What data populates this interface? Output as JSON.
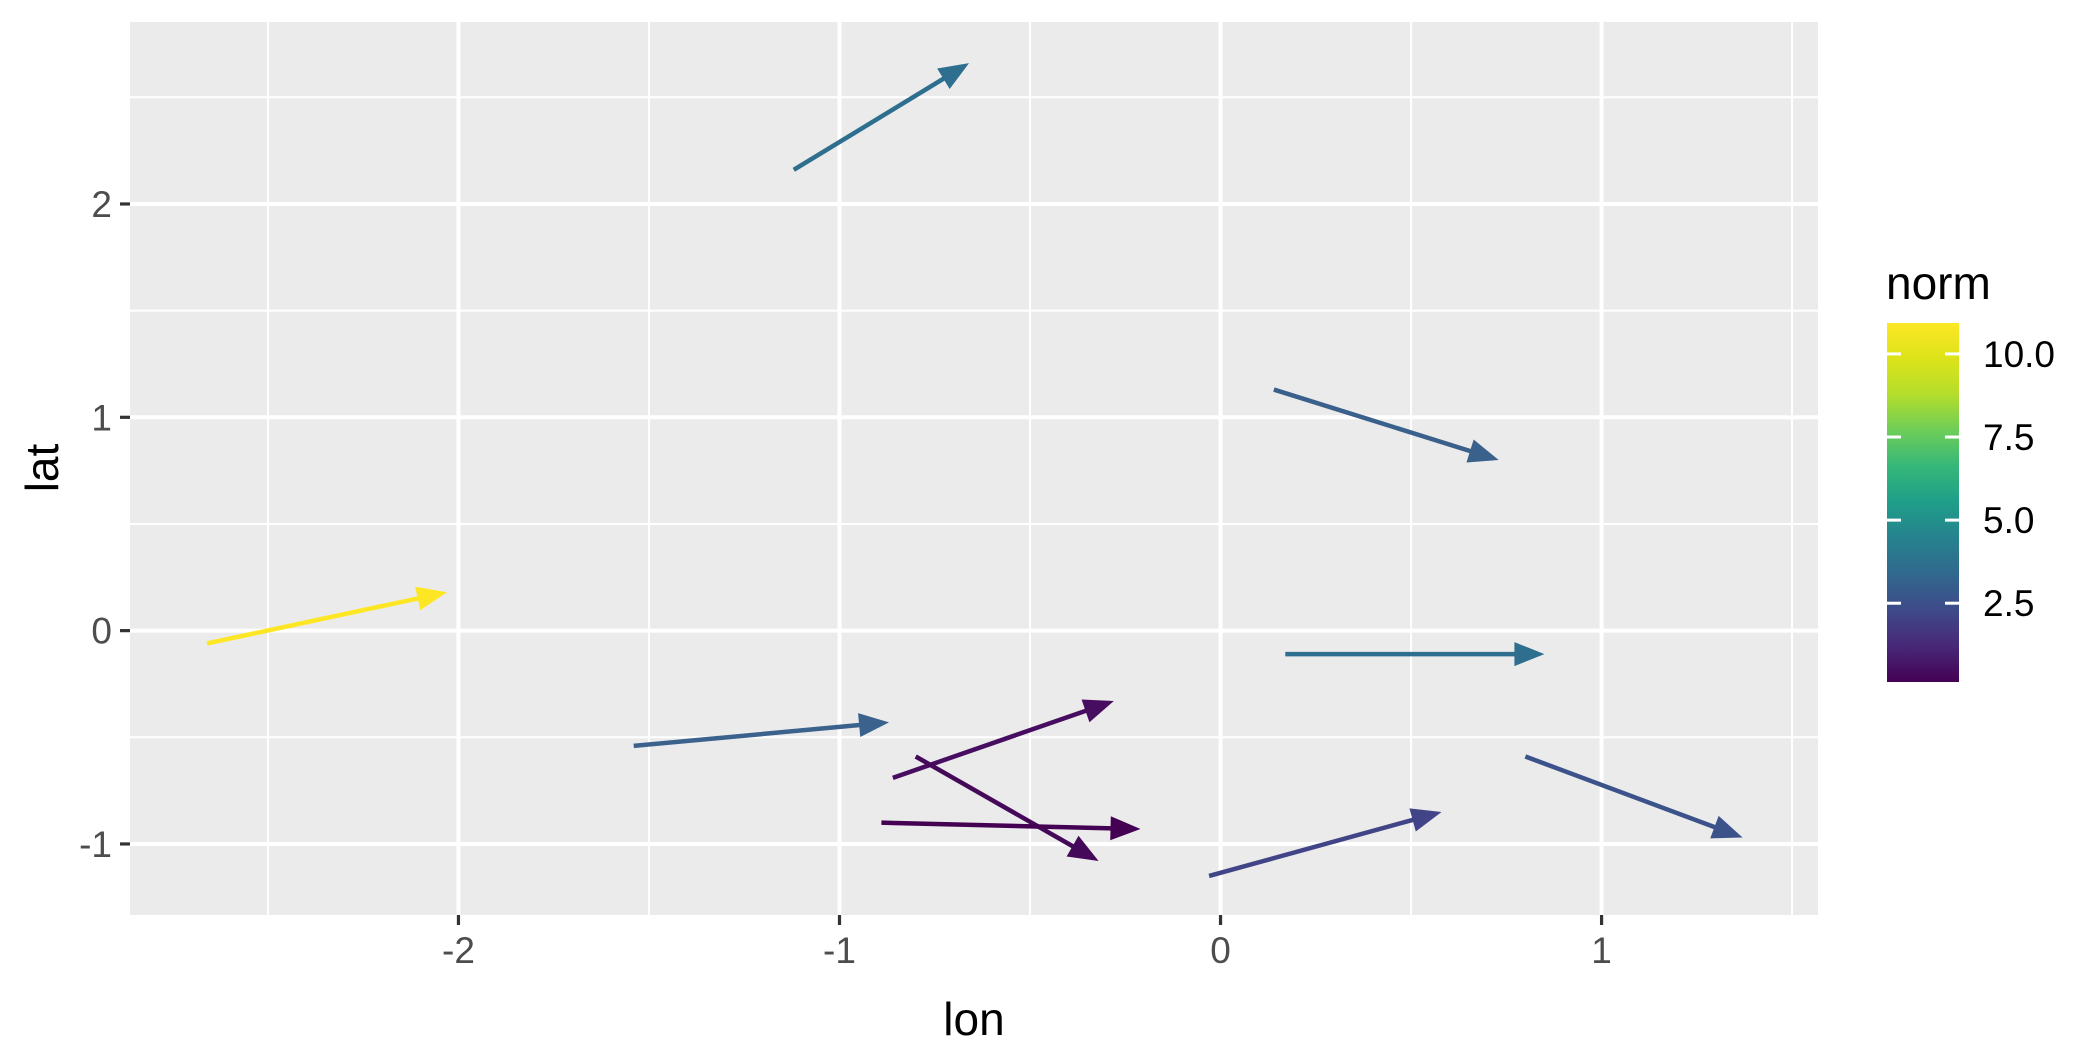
{
  "figure": {
    "background": "#FFFFFF",
    "panel_background": "#EBEBEB",
    "grid_color": "#FFFFFF",
    "tick_label_color": "#4D4D4D",
    "tick_mark_color": "#333333"
  },
  "chart_data": {
    "type": "scatter",
    "subtype": "quiver-vector-field",
    "title": "",
    "xlabel": "lon",
    "ylabel": "lat",
    "xlim": [
      -2.862,
      1.568
    ],
    "ylim": [
      -1.333,
      2.853
    ],
    "x_major_ticks": [
      -2,
      -1,
      0,
      1
    ],
    "x_tick_labels": [
      "-2",
      "-1",
      "0",
      "1"
    ],
    "x_minor_ticks": [
      -2.5,
      -1.5,
      -0.5,
      0.5,
      1.5
    ],
    "y_major_ticks": [
      -1,
      0,
      1,
      2
    ],
    "y_tick_labels": [
      "-1",
      "0",
      "1",
      "2"
    ],
    "y_minor_ticks": [
      -0.5,
      0.5,
      1.5,
      2.5
    ],
    "grid": true,
    "arrows": [
      {
        "x": -1.12,
        "y": 2.16,
        "xend": -0.66,
        "yend": 2.66,
        "norm": 3.9,
        "color": "#2E6E8E"
      },
      {
        "x": 0.14,
        "y": 1.13,
        "xend": 0.73,
        "yend": 0.8,
        "norm": 3.1,
        "color": "#3A618C"
      },
      {
        "x": -2.66,
        "y": -0.06,
        "xend": -2.03,
        "yend": 0.18,
        "norm": 10.9,
        "color": "#FDE725"
      },
      {
        "x": -1.54,
        "y": -0.54,
        "xend": -0.87,
        "yend": -0.43,
        "norm": 3.2,
        "color": "#3A628C"
      },
      {
        "x": -0.86,
        "y": -0.69,
        "xend": -0.28,
        "yend": -0.33,
        "norm": 0.9,
        "color": "#470D60"
      },
      {
        "x": -0.8,
        "y": -0.59,
        "xend": -0.32,
        "yend": -1.08,
        "norm": 0.7,
        "color": "#45095A"
      },
      {
        "x": -0.89,
        "y": -0.9,
        "xend": -0.21,
        "yend": -0.93,
        "norm": 0.2,
        "color": "#440154"
      },
      {
        "x": 0.17,
        "y": -0.11,
        "xend": 0.85,
        "yend": -0.11,
        "norm": 3.9,
        "color": "#2E6E8E"
      },
      {
        "x": -0.03,
        "y": -1.15,
        "xend": 0.58,
        "yend": -0.85,
        "norm": 1.9,
        "color": "#414487"
      },
      {
        "x": 0.8,
        "y": -0.59,
        "xend": 1.37,
        "yend": -0.97,
        "norm": 2.6,
        "color": "#3B528B"
      }
    ],
    "legend": {
      "title": "norm",
      "position": "right",
      "range": [
        0.13,
        10.93
      ],
      "tick_values": [
        2.5,
        5.0,
        7.5,
        10.0
      ],
      "tick_labels": [
        "2.5",
        "5.0",
        "7.5",
        "10.0"
      ],
      "colormap": "viridis",
      "gradient_stops": [
        {
          "t": 0.0,
          "color": "#440154"
        },
        {
          "t": 0.1,
          "color": "#482878"
        },
        {
          "t": 0.2,
          "color": "#3E4A89"
        },
        {
          "t": 0.3,
          "color": "#31688E"
        },
        {
          "t": 0.4,
          "color": "#26828E"
        },
        {
          "t": 0.5,
          "color": "#1F9E89"
        },
        {
          "t": 0.6,
          "color": "#35B779"
        },
        {
          "t": 0.7,
          "color": "#6DCD59"
        },
        {
          "t": 0.8,
          "color": "#B4DE2C"
        },
        {
          "t": 0.9,
          "color": "#DCE319"
        },
        {
          "t": 1.0,
          "color": "#FDE725"
        }
      ]
    }
  }
}
